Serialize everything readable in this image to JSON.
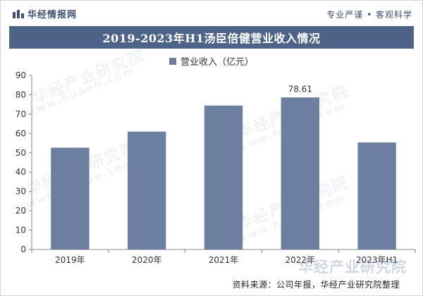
{
  "header": {
    "brand_name": "华经情报网",
    "slogan": "专业严谨 • 客观科学"
  },
  "watermark": {
    "text": "华经产业研究院",
    "url": "www.huaon.com"
  },
  "source": "资料来源：公司年报，华经产业研究院整理",
  "colors": {
    "bar": "#6d7fa0",
    "title_bg": "#4e6388",
    "brand": "#3c4f6f"
  },
  "chart_data": {
    "type": "bar",
    "title": "2019-2023年H1汤臣倍健营业收入情况",
    "categories": [
      "2019年",
      "2020年",
      "2021年",
      "2022年",
      "2023年H1"
    ],
    "series": [
      {
        "name": "营业收入（亿元）",
        "values": [
          52.62,
          60.95,
          74.42,
          78.61,
          55.35
        ]
      }
    ],
    "data_labels": {
      "2022年": "78.61"
    },
    "ylim": [
      0,
      90
    ],
    "yticks": [
      0,
      10,
      20,
      30,
      40,
      50,
      60,
      70,
      80,
      90
    ],
    "xlabel": "",
    "ylabel": "",
    "legend_position": "top-center",
    "grid": false
  }
}
